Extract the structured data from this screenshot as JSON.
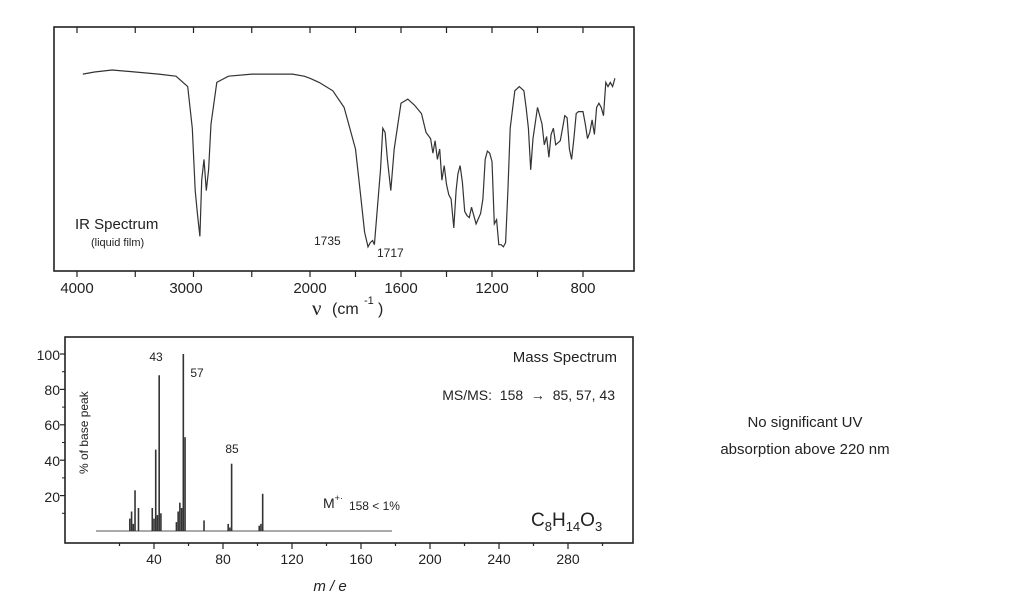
{
  "ir": {
    "title": "IR Spectrum",
    "subtitle": "(liquid film)",
    "xlabel_main": "ν",
    "xlabel_unit": "(cm",
    "xlabel_exp": "-1",
    "xlabel_close": ")",
    "ticks": [
      "4000",
      "3000",
      "2000",
      "1600",
      "1200",
      "800"
    ],
    "peak_labels": [
      "1735",
      "1717"
    ]
  },
  "ms": {
    "title": "Mass Spectrum",
    "msms": "MS/MS:  158  →  85, 57, 43",
    "ylabel": "% of base peak",
    "xlabel": "m / e",
    "formula_parts": [
      "C",
      "8",
      "H",
      "14",
      "O",
      "3"
    ],
    "molecular_ion": "M",
    "molecular_ion_charge": "+·",
    "molecular_ion_note": "158 < 1%",
    "peak_labels": [
      "43",
      "57",
      "85"
    ]
  },
  "uv_note": {
    "line1": "No significant UV",
    "line2": "absorption above 220 nm"
  },
  "chart_data": [
    {
      "type": "line",
      "title": "IR Spectrum",
      "subtitle": "(liquid film)",
      "xlabel": "ν (cm-1)",
      "xlim": [
        4000,
        650
      ],
      "x_scale": "two-segment (4000–2000 compressed, 2000–650 expanded)",
      "x_ticks": [
        4000,
        3000,
        2000,
        1600,
        1200,
        800
      ],
      "y_axis": "% transmittance (unlabeled)",
      "grid": false,
      "x": [
        3950,
        3850,
        3700,
        3500,
        3300,
        3150,
        3050,
        3010,
        2985,
        2965,
        2945,
        2930,
        2910,
        2890,
        2870,
        2850,
        2800,
        2700,
        2500,
        2300,
        2150,
        2050,
        2000,
        1960,
        1900,
        1850,
        1800,
        1780,
        1760,
        1745,
        1735,
        1725,
        1717,
        1705,
        1690,
        1680,
        1670,
        1660,
        1645,
        1630,
        1600,
        1570,
        1540,
        1510,
        1490,
        1470,
        1460,
        1450,
        1440,
        1430,
        1420,
        1410,
        1400,
        1390,
        1380,
        1368,
        1358,
        1350,
        1340,
        1330,
        1320,
        1310,
        1300,
        1290,
        1270,
        1250,
        1240,
        1230,
        1220,
        1210,
        1200,
        1190,
        1180,
        1170,
        1160,
        1150,
        1140,
        1130,
        1120,
        1100,
        1080,
        1060,
        1050,
        1040,
        1030,
        1020,
        1000,
        980,
        970,
        960,
        950,
        940,
        930,
        920,
        900,
        880,
        870,
        860,
        850,
        840,
        830,
        820,
        800,
        790,
        780,
        770,
        760,
        750,
        740,
        730,
        720,
        710,
        700,
        690,
        680,
        670,
        660
      ],
      "y": [
        86,
        87,
        88,
        87,
        86,
        85,
        80,
        60,
        30,
        18,
        8,
        35,
        45,
        30,
        40,
        62,
        82,
        85,
        86,
        86,
        86,
        85,
        84,
        82,
        78,
        70,
        50,
        30,
        10,
        3,
        5,
        6,
        4,
        20,
        40,
        60,
        58,
        45,
        30,
        50,
        72,
        74,
        71,
        67,
        58,
        55,
        48,
        54,
        45,
        50,
        35,
        42,
        33,
        28,
        26,
        12,
        30,
        38,
        42,
        34,
        20,
        18,
        17,
        22,
        14,
        19,
        26,
        45,
        49,
        48,
        44,
        14,
        16,
        4,
        4,
        3,
        5,
        30,
        60,
        78,
        80,
        78,
        70,
        60,
        40,
        55,
        70,
        62,
        52,
        56,
        46,
        57,
        60,
        52,
        54,
        66,
        65,
        50,
        45,
        55,
        67,
        68,
        68,
        62,
        55,
        58,
        64,
        57,
        70,
        72,
        70,
        66,
        82,
        80,
        82,
        80,
        84
      ]
    },
    {
      "type": "bar",
      "title": "Mass Spectrum",
      "xlabel": "m / e",
      "ylabel": "% of base peak",
      "xlim": [
        0,
        310
      ],
      "ylim": [
        0,
        105
      ],
      "x_ticks": [
        40,
        80,
        120,
        160,
        200,
        240,
        280
      ],
      "y_ticks": [
        20,
        40,
        60,
        80,
        100
      ],
      "x": [
        26,
        27,
        28,
        29,
        31,
        39,
        40,
        41,
        42,
        43,
        44,
        53,
        54,
        55,
        56,
        57,
        58,
        69,
        83,
        84,
        85,
        101,
        102,
        103
      ],
      "values": [
        7,
        11,
        4,
        23,
        13,
        13,
        7,
        46,
        9,
        88,
        10,
        5,
        11,
        16,
        13,
        100,
        53,
        6,
        4,
        2,
        38,
        3,
        4,
        21
      ],
      "annotations": [
        "43",
        "57",
        "85",
        "M+· 158 < 1%",
        "MS/MS:  158  →  85, 57, 43",
        "C8H14O3"
      ]
    }
  ]
}
